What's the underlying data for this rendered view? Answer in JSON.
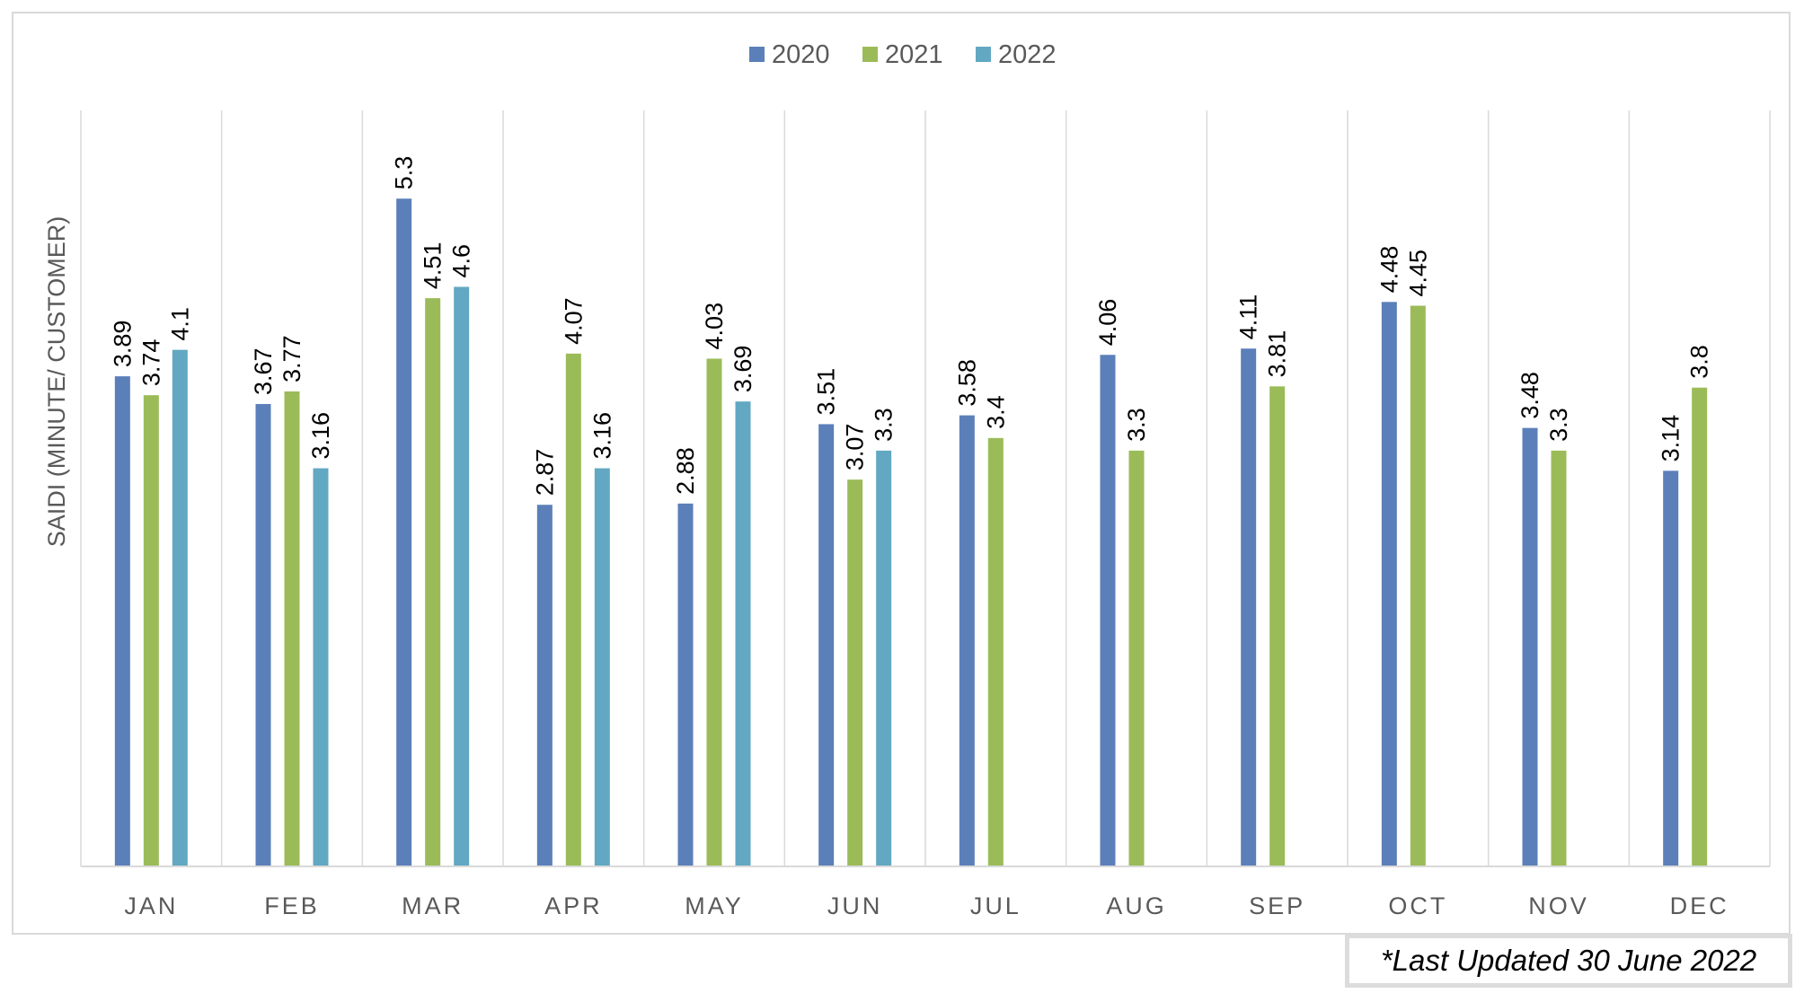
{
  "chart_data": {
    "type": "bar",
    "title": "",
    "xlabel": "",
    "ylabel": "SAIDI (MINUTE/ CUSTOMER)",
    "categories": [
      "JAN",
      "FEB",
      "MAR",
      "APR",
      "MAY",
      "JUN",
      "JUL",
      "AUG",
      "SEP",
      "OCT",
      "NOV",
      "DEC"
    ],
    "series": [
      {
        "name": "2020",
        "color": "#5b7fb9",
        "values": [
          3.89,
          3.67,
          5.3,
          2.87,
          2.88,
          3.51,
          3.58,
          4.06,
          4.11,
          4.48,
          3.48,
          3.14
        ]
      },
      {
        "name": "2021",
        "color": "#9bbb59",
        "values": [
          3.74,
          3.77,
          4.51,
          4.07,
          4.03,
          3.07,
          3.4,
          3.3,
          3.81,
          4.45,
          3.3,
          3.8
        ]
      },
      {
        "name": "2022",
        "color": "#62a8c2",
        "values": [
          4.1,
          3.16,
          4.6,
          3.16,
          3.69,
          3.3,
          null,
          null,
          null,
          null,
          null,
          null
        ]
      }
    ],
    "ylim": [
      0,
      6
    ],
    "grid": "vertical-category-separators",
    "legend_position": "top-center",
    "data_labels": "rotated-vertical"
  },
  "note": "*Last Updated 30 June 2022"
}
